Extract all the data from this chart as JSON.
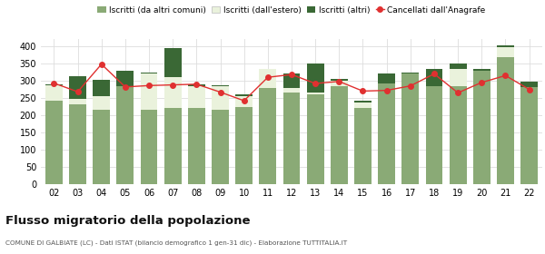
{
  "years": [
    "02",
    "03",
    "04",
    "05",
    "06",
    "07",
    "08",
    "09",
    "10",
    "11",
    "12",
    "13",
    "14",
    "15",
    "16",
    "17",
    "18",
    "19",
    "20",
    "21",
    "22"
  ],
  "iscritti_altri_comuni": [
    242,
    232,
    215,
    285,
    215,
    220,
    220,
    215,
    225,
    278,
    265,
    260,
    285,
    222,
    292,
    320,
    283,
    285,
    328,
    368,
    282
  ],
  "iscritti_estero": [
    45,
    15,
    40,
    0,
    105,
    90,
    65,
    68,
    30,
    55,
    15,
    5,
    15,
    15,
    0,
    0,
    0,
    50,
    0,
    30,
    0
  ],
  "iscritti_altri": [
    3,
    65,
    48,
    45,
    5,
    85,
    5,
    5,
    5,
    0,
    40,
    85,
    5,
    5,
    30,
    5,
    50,
    15,
    5,
    5,
    15
  ],
  "cancellati": [
    293,
    268,
    348,
    282,
    286,
    288,
    290,
    267,
    242,
    310,
    318,
    292,
    298,
    270,
    272,
    285,
    320,
    265,
    295,
    315,
    275
  ],
  "color_altri_comuni": "#8aaa76",
  "color_estero": "#eaf2dc",
  "color_altri": "#3a6835",
  "color_cancellati": "#e03030",
  "legend_labels": [
    "Iscritti (da altri comuni)",
    "Iscritti (dall'estero)",
    "Iscritti (altri)",
    "Cancellati dall'Anagrafe"
  ],
  "title": "Flusso migratorio della popolazione",
  "subtitle": "COMUNE DI GALBIATE (LC) - Dati ISTAT (bilancio demografico 1 gen-31 dic) - Elaborazione TUTTITALIA.IT",
  "ylim": [
    0,
    420
  ],
  "yticks": [
    0,
    50,
    100,
    150,
    200,
    250,
    300,
    350,
    400
  ],
  "background_color": "#ffffff",
  "grid_color": "#dddddd"
}
